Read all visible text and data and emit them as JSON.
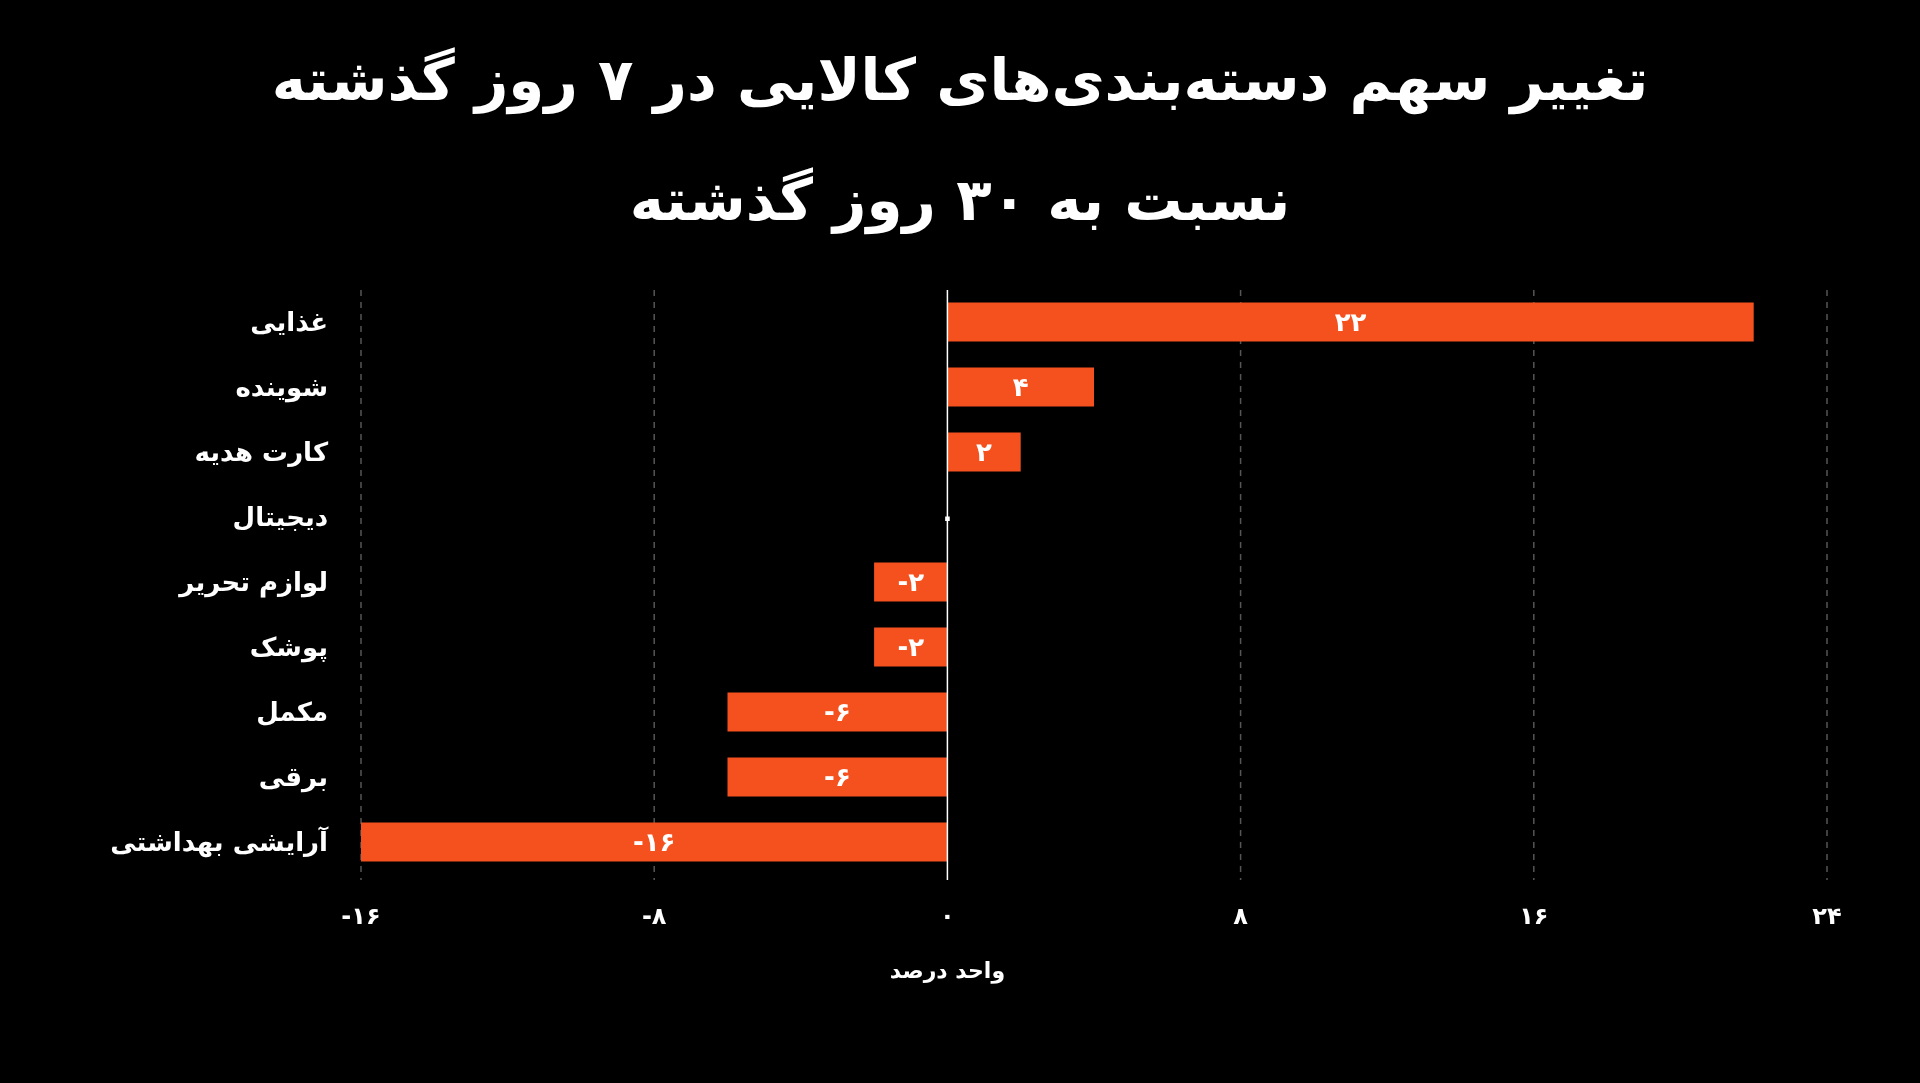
{
  "chart_data": {
    "type": "bar",
    "orientation": "horizontal",
    "title": "تغییر سهم دسته‌بندی‌های کالایی در ۷ روز گذشته",
    "subtitle": "نسبت به ۳۰ روز گذشته",
    "xlabel": "واحد درصد",
    "categories": [
      "غذایی",
      "شوینده",
      "کارت هدیه",
      "دیجیتال",
      "لوازم تحریر",
      "پوشک",
      "مکمل",
      "برقی",
      "آرایشی بهداشتی"
    ],
    "values": [
      22,
      4,
      2,
      0,
      -2,
      -2,
      -6,
      -6,
      -16
    ],
    "value_labels": [
      "۲۲",
      "۴",
      "۲",
      "۰",
      "-۲",
      "-۲",
      "-۶",
      "-۶",
      "-۱۶"
    ],
    "color": "#f4511e",
    "xlim": [
      -16,
      24
    ],
    "xticks": [
      {
        "value": -16,
        "label": "-۱۶"
      },
      {
        "value": -8,
        "label": "-۸"
      },
      {
        "value": 0,
        "label": "۰"
      },
      {
        "value": 8,
        "label": "۸"
      },
      {
        "value": 16,
        "label": "۱۶"
      },
      {
        "value": 24,
        "label": "۲۴"
      }
    ],
    "grid": "x"
  }
}
